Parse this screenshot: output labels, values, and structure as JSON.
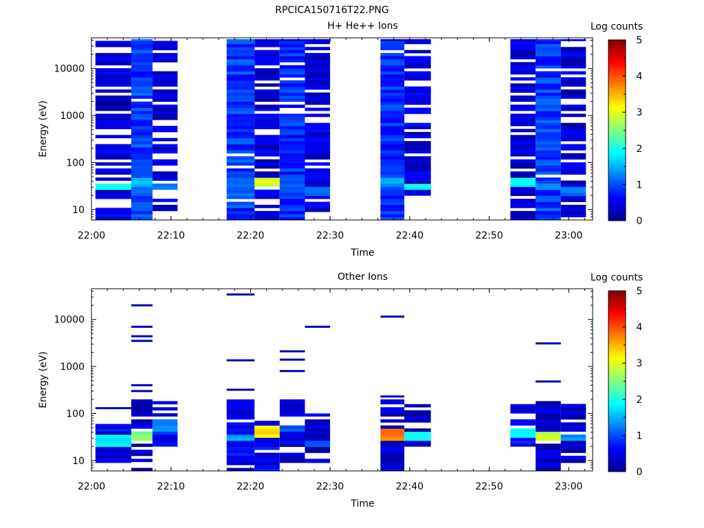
{
  "figure_title": "RPCICA150716T22.PNG",
  "chart_data": [
    {
      "type": "heatmap",
      "title": "H+ He++ Ions",
      "xlabel": "Time",
      "ylabel": "Energy (eV)",
      "x_ticks": [
        "22:00",
        "22:10",
        "22:20",
        "22:30",
        "22:40",
        "22:50",
        "23:00"
      ],
      "x_range": [
        "22:00",
        "23:03"
      ],
      "y_scale": "log",
      "y_ticks": [
        "10",
        "100",
        "1000",
        "10000"
      ],
      "y_range": [
        6,
        45000
      ],
      "colorbar": {
        "label": "Log counts",
        "range": [
          0,
          5
        ],
        "ticks": [
          "0",
          "1",
          "2",
          "3",
          "4",
          "5"
        ]
      },
      "columns": [
        {
          "t_start": "22:00:30",
          "t_end": "22:05:00",
          "e_min": 6,
          "e_max": 42000,
          "base_level": 0.4,
          "fill": 0.7,
          "peak": {
            "e_low": 25,
            "e_high": 35,
            "level": 2.2
          }
        },
        {
          "t_start": "22:05:00",
          "t_end": "22:07:40",
          "e_min": 6,
          "e_max": 42000,
          "base_level": 0.9,
          "fill": 0.95,
          "peak": {
            "e_low": 30,
            "e_high": 45,
            "level": 1.6
          }
        },
        {
          "t_start": "22:07:40",
          "t_end": "22:10:50",
          "e_min": 9,
          "e_max": 42000,
          "base_level": 0.4,
          "fill": 0.7,
          "peak": {
            "e_low": 25,
            "e_high": 35,
            "level": 1.4
          }
        },
        {
          "t_start": "22:17:00",
          "t_end": "22:20:30",
          "e_min": 6,
          "e_max": 42000,
          "base_level": 0.9,
          "fill": 0.95,
          "peak": {
            "e_low": 30,
            "e_high": 45,
            "level": 1.3
          }
        },
        {
          "t_start": "22:20:30",
          "t_end": "22:23:40",
          "e_min": 6,
          "e_max": 42000,
          "base_level": 0.4,
          "fill": 0.75,
          "peak": {
            "e_low": 30,
            "e_high": 45,
            "level": 3.1
          }
        },
        {
          "t_start": "22:23:40",
          "t_end": "22:26:50",
          "e_min": 6,
          "e_max": 42000,
          "base_level": 0.8,
          "fill": 0.95,
          "peak": {
            "e_low": 25,
            "e_high": 40,
            "level": 1.2
          }
        },
        {
          "t_start": "22:26:50",
          "t_end": "22:30:00",
          "e_min": 9,
          "e_max": 42000,
          "base_level": 0.4,
          "fill": 0.75,
          "peak": {
            "e_low": 20,
            "e_high": 30,
            "level": 1.4
          }
        },
        {
          "t_start": "22:36:20",
          "t_end": "22:39:20",
          "e_min": 6,
          "e_max": 42000,
          "base_level": 0.8,
          "fill": 0.95,
          "peak": {
            "e_low": 30,
            "e_high": 45,
            "level": 1.5
          }
        },
        {
          "t_start": "22:39:20",
          "t_end": "22:42:40",
          "e_min": 20,
          "e_max": 42000,
          "base_level": 0.4,
          "fill": 0.75,
          "peak": {
            "e_low": 25,
            "e_high": 35,
            "level": 2.1
          }
        },
        {
          "t_start": "22:52:40",
          "t_end": "22:55:50",
          "e_min": 6,
          "e_max": 42000,
          "base_level": 0.4,
          "fill": 0.7,
          "peak": {
            "e_low": 30,
            "e_high": 45,
            "level": 2.1
          }
        },
        {
          "t_start": "22:55:50",
          "t_end": "22:59:00",
          "e_min": 6,
          "e_max": 42000,
          "base_level": 0.9,
          "fill": 0.95,
          "peak": {
            "e_low": 25,
            "e_high": 35,
            "level": 1.4
          }
        },
        {
          "t_start": "22:59:00",
          "t_end": "23:02:10",
          "e_min": 6,
          "e_max": 42000,
          "base_level": 0.4,
          "fill": 0.75,
          "peak": {
            "e_low": 20,
            "e_high": 30,
            "level": 1.3
          }
        }
      ]
    },
    {
      "type": "heatmap",
      "title": "Other Ions",
      "xlabel": "Time",
      "ylabel": "Energy (eV)",
      "x_ticks": [
        "22:00",
        "22:10",
        "22:20",
        "22:30",
        "22:40",
        "22:50",
        "23:00"
      ],
      "x_range": [
        "22:00",
        "23:03"
      ],
      "y_scale": "log",
      "y_ticks": [
        "10",
        "100",
        "1000",
        "10000"
      ],
      "y_range": [
        6,
        45000
      ],
      "colorbar": {
        "label": "Log counts",
        "range": [
          0,
          5
        ],
        "ticks": [
          "0",
          "1",
          "2",
          "3",
          "4",
          "5"
        ]
      },
      "columns": [
        {
          "t_start": "22:00:30",
          "t_end": "22:05:00",
          "e_min": 9,
          "e_max": 60,
          "base_level": 0.5,
          "fill": 0.9,
          "peak": {
            "e_low": 20,
            "e_high": 35,
            "level": 1.9
          },
          "sparse": [
            130,
            50
          ]
        },
        {
          "t_start": "22:05:00",
          "t_end": "22:07:40",
          "e_min": 6,
          "e_max": 200,
          "base_level": 0.3,
          "fill": 0.75,
          "peak": {
            "e_low": 25,
            "e_high": 40,
            "level": 2.7
          },
          "sparse": [
            20000,
            7000,
            4400,
            3500,
            400,
            300
          ]
        },
        {
          "t_start": "22:07:40",
          "t_end": "22:10:50",
          "e_min": 20,
          "e_max": 200,
          "base_level": 0.6,
          "fill": 0.75,
          "peak": {
            "e_low": 40,
            "e_high": 70,
            "level": 1.4
          },
          "sparse": []
        },
        {
          "t_start": "22:17:00",
          "t_end": "22:20:30",
          "e_min": 6,
          "e_max": 200,
          "base_level": 0.5,
          "fill": 0.8,
          "peak": {
            "e_low": 25,
            "e_high": 35,
            "level": 1.6
          },
          "sparse": [
            34000,
            1350,
            320
          ]
        },
        {
          "t_start": "22:20:30",
          "t_end": "22:23:40",
          "e_min": 6,
          "e_max": 70,
          "base_level": 0.5,
          "fill": 0.85,
          "peak": {
            "e_low": 30,
            "e_high": 55,
            "level": 3.4
          },
          "sparse": []
        },
        {
          "t_start": "22:23:40",
          "t_end": "22:26:50",
          "e_min": 9,
          "e_max": 200,
          "base_level": 0.4,
          "fill": 0.8,
          "peak": {
            "e_low": 40,
            "e_high": 60,
            "level": 1.2
          },
          "sparse": [
            2100,
            1400,
            800
          ]
        },
        {
          "t_start": "22:26:50",
          "t_end": "22:30:00",
          "e_min": 9,
          "e_max": 100,
          "base_level": 0.3,
          "fill": 0.75,
          "peak": {
            "e_low": 20,
            "e_high": 28,
            "level": 1.1
          },
          "sparse": [
            7000
          ]
        },
        {
          "t_start": "22:36:20",
          "t_end": "22:39:20",
          "e_min": 6,
          "e_max": 200,
          "base_level": 0.3,
          "fill": 0.85,
          "peak": {
            "e_low": 25,
            "e_high": 45,
            "level": 3.9
          },
          "sparse": [
            11500,
            230
          ]
        },
        {
          "t_start": "22:39:20",
          "t_end": "22:42:40",
          "e_min": 20,
          "e_max": 170,
          "base_level": 0.3,
          "fill": 0.7,
          "peak": {
            "e_low": 25,
            "e_high": 40,
            "level": 2.0
          },
          "sparse": []
        },
        {
          "t_start": "22:52:40",
          "t_end": "22:55:50",
          "e_min": 20,
          "e_max": 160,
          "base_level": 0.6,
          "fill": 0.85,
          "peak": {
            "e_low": 30,
            "e_high": 50,
            "level": 2.0
          },
          "sparse": []
        },
        {
          "t_start": "22:55:50",
          "t_end": "22:59:00",
          "e_min": 6,
          "e_max": 200,
          "base_level": 0.3,
          "fill": 0.85,
          "peak": {
            "e_low": 25,
            "e_high": 40,
            "level": 3.0
          },
          "sparse": [
            3100,
            480
          ]
        },
        {
          "t_start": "22:59:00",
          "t_end": "23:02:10",
          "e_min": 9,
          "e_max": 160,
          "base_level": 0.3,
          "fill": 0.8,
          "peak": {
            "e_low": 25,
            "e_high": 35,
            "level": 1.5
          },
          "sparse": []
        }
      ]
    }
  ]
}
